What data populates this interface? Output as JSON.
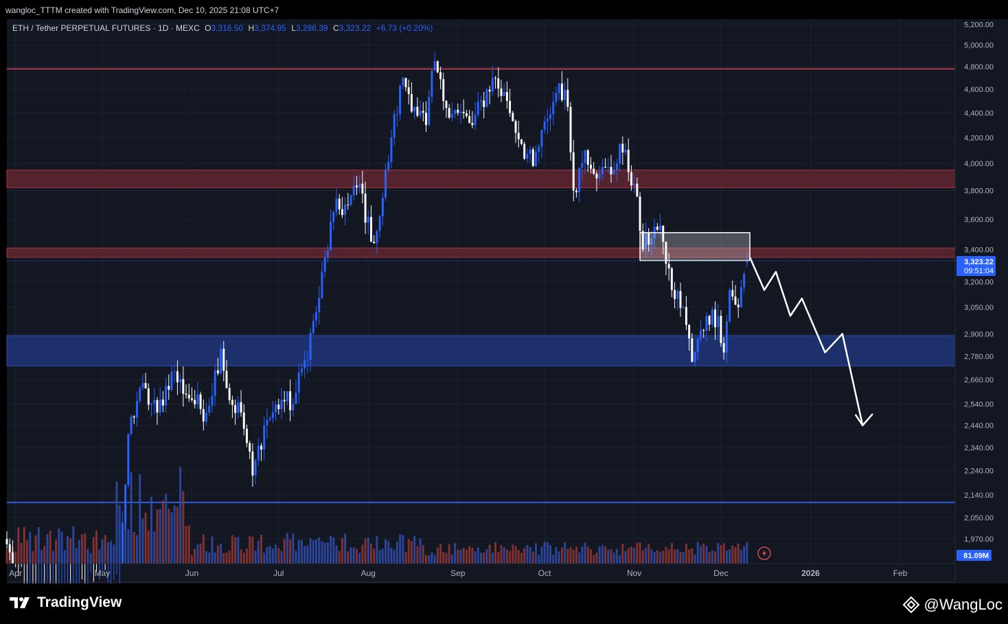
{
  "header": {
    "created_text": "wangloc_TTTM created with TradingView.com, Dec 10, 2025 21:08 UTC+7"
  },
  "legend": {
    "symbol": "ETH / Tether PERPETUAL FUTURES · 1D · MEXC",
    "open_key": "O",
    "open": "3,316.50",
    "high_key": "H",
    "high": "3,374.95",
    "low_key": "L",
    "low": "3,286.39",
    "close_key": "C",
    "close": "3,323.22",
    "change": "+6.73 (+0.20%)"
  },
  "price_axis": {
    "ticks": [
      "5,200.00",
      "5,000.00",
      "4,800.00",
      "4,600.00",
      "4,400.00",
      "4,200.00",
      "4,000.00",
      "3,800.00",
      "3,600.00",
      "3,400.00",
      "3,200.00",
      "3,050.00",
      "2,900.00",
      "2,780.00",
      "2,660.00",
      "2,540.00",
      "2,440.00",
      "2,340.00",
      "2,240.00",
      "2,140.00",
      "2,050.00",
      "1,970.00"
    ],
    "last_price_label": "3,323.22",
    "countdown_label": "09:51:04",
    "volume_label": "81.09M"
  },
  "time_axis": {
    "labels": [
      "Apr",
      "May",
      "Jun",
      "Jul",
      "Aug",
      "Sep",
      "Oct",
      "Nov",
      "Dec",
      "2026",
      "Feb"
    ]
  },
  "branding": {
    "tradingview": "TradingView",
    "author": "@WangLoc"
  },
  "colors": {
    "background": "#131722",
    "up": "#2962ff",
    "down": "#ffffff",
    "resistance_zone": "#5c2530",
    "support_zone": "#1f3373",
    "volume_up": "#2f4aa8",
    "volume_down": "#8d3535",
    "projection": "#ffffff"
  },
  "chart_data": {
    "type": "candlestick",
    "symbol": "ETH / Tether PERPETUAL FUTURES",
    "interval": "1D",
    "exchange": "MEXC",
    "x_range": [
      "2025-03-29",
      "2026-02-20"
    ],
    "y_scale": "log",
    "ylim": [
      1880,
      5250
    ],
    "last": {
      "open": 3316.5,
      "high": 3374.95,
      "low": 3286.39,
      "close": 3323.22,
      "change": 6.73,
      "change_pct": 0.2
    },
    "close_anchors": [
      {
        "date": "2025-03-29",
        "close": 1950
      },
      {
        "date": "2025-04-08",
        "close": 1560
      },
      {
        "date": "2025-04-22",
        "close": 1760
      },
      {
        "date": "2025-05-07",
        "close": 1810
      },
      {
        "date": "2025-05-10",
        "close": 2400
      },
      {
        "date": "2025-05-14",
        "close": 2620
      },
      {
        "date": "2025-05-20",
        "close": 2500
      },
      {
        "date": "2025-05-25",
        "close": 2700
      },
      {
        "date": "2025-06-01",
        "close": 2560
      },
      {
        "date": "2025-06-06",
        "close": 2500
      },
      {
        "date": "2025-06-11",
        "close": 2820
      },
      {
        "date": "2025-06-14",
        "close": 2560
      },
      {
        "date": "2025-06-18",
        "close": 2500
      },
      {
        "date": "2025-06-22",
        "close": 2220
      },
      {
        "date": "2025-06-26",
        "close": 2440
      },
      {
        "date": "2025-07-02",
        "close": 2560
      },
      {
        "date": "2025-07-06",
        "close": 2540
      },
      {
        "date": "2025-07-10",
        "close": 2760
      },
      {
        "date": "2025-07-14",
        "close": 3020
      },
      {
        "date": "2025-07-20",
        "close": 3650
      },
      {
        "date": "2025-07-25",
        "close": 3700
      },
      {
        "date": "2025-07-29",
        "close": 3850
      },
      {
        "date": "2025-08-02",
        "close": 3450
      },
      {
        "date": "2025-08-05",
        "close": 3620
      },
      {
        "date": "2025-08-09",
        "close": 4200
      },
      {
        "date": "2025-08-13",
        "close": 4700
      },
      {
        "date": "2025-08-17",
        "close": 4450
      },
      {
        "date": "2025-08-21",
        "close": 4300
      },
      {
        "date": "2025-08-24",
        "close": 4850
      },
      {
        "date": "2025-08-27",
        "close": 4500
      },
      {
        "date": "2025-09-01",
        "close": 4400
      },
      {
        "date": "2025-09-06",
        "close": 4300
      },
      {
        "date": "2025-09-13",
        "close": 4700
      },
      {
        "date": "2025-09-18",
        "close": 4500
      },
      {
        "date": "2025-09-23",
        "close": 4150
      },
      {
        "date": "2025-09-27",
        "close": 3980
      },
      {
        "date": "2025-10-02",
        "close": 4350
      },
      {
        "date": "2025-10-06",
        "close": 4650
      },
      {
        "date": "2025-10-09",
        "close": 4450
      },
      {
        "date": "2025-10-11",
        "close": 3800
      },
      {
        "date": "2025-10-15",
        "close": 4100
      },
      {
        "date": "2025-10-20",
        "close": 3920
      },
      {
        "date": "2025-10-25",
        "close": 3950
      },
      {
        "date": "2025-10-27",
        "close": 4150
      },
      {
        "date": "2025-11-01",
        "close": 3850
      },
      {
        "date": "2025-11-04",
        "close": 3400
      },
      {
        "date": "2025-11-08",
        "close": 3550
      },
      {
        "date": "2025-11-11",
        "close": 3450
      },
      {
        "date": "2025-11-14",
        "close": 3150
      },
      {
        "date": "2025-11-18",
        "close": 3050
      },
      {
        "date": "2025-11-21",
        "close": 2750
      },
      {
        "date": "2025-11-26",
        "close": 3000
      },
      {
        "date": "2025-11-30",
        "close": 3000
      },
      {
        "date": "2025-12-02",
        "close": 2800
      },
      {
        "date": "2025-12-04",
        "close": 3150
      },
      {
        "date": "2025-12-07",
        "close": 3050
      },
      {
        "date": "2025-12-10",
        "close": 3323.22
      }
    ],
    "horizontal_levels": [
      {
        "kind": "resistance-line",
        "price": 4780
      },
      {
        "kind": "resistance-zone",
        "from": 3820,
        "to": 3950
      },
      {
        "kind": "resistance-zone",
        "from": 3350,
        "to": 3410
      },
      {
        "kind": "support-zone",
        "from": 2730,
        "to": 2890
      },
      {
        "kind": "support-line",
        "price": 2110
      }
    ],
    "rectangle": {
      "from_date": "2025-11-03",
      "to_date": "2025-12-11",
      "low": 3330,
      "high": 3510
    },
    "projection_path": [
      {
        "date": "2025-12-11",
        "price": 3350
      },
      {
        "date": "2025-12-16",
        "price": 3150
      },
      {
        "date": "2025-12-20",
        "price": 3260
      },
      {
        "date": "2025-12-25",
        "price": 3000
      },
      {
        "date": "2025-12-29",
        "price": 3100
      },
      {
        "date": "2026-01-06",
        "price": 2800
      },
      {
        "date": "2026-01-12",
        "price": 2900
      },
      {
        "date": "2026-01-19",
        "price": 2440
      }
    ],
    "volume_last": "81.09M",
    "grid": true
  }
}
